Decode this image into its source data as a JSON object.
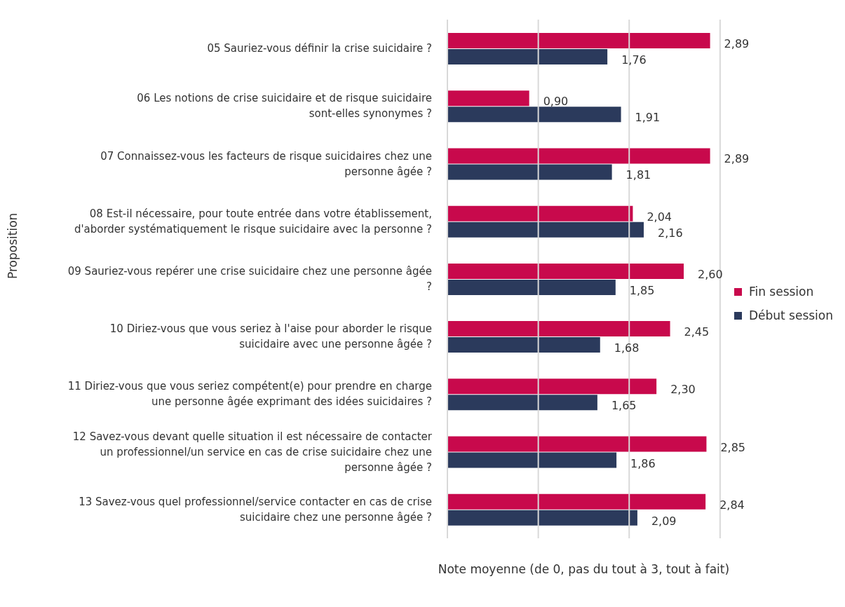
{
  "chart_data": {
    "type": "bar",
    "orientation": "horizontal",
    "xlabel": "Note moyenne (de 0, pas du tout à 3, tout à fait)",
    "ylabel": "Proposition",
    "categories": [
      "05 Sauriez-vous définir la crise suicidaire ?",
      "06 Les notions de crise suicidaire et de risque suicidaire sont-elles synonymes ?",
      "07 Connaissez-vous les facteurs de risque suicidaires chez une personne âgée ?",
      "08 Est-il nécessaire, pour toute entrée dans votre établissement, d'aborder systématiquement le risque suicidaire avec la personne ?",
      "09 Sauriez-vous repérer une crise suicidaire chez une personne âgée ?",
      "10 Diriez-vous que vous seriez à l'aise pour aborder le risque suicidaire avec une personne âgée ?",
      "11 Diriez-vous que vous seriez compétent(e) pour prendre en charge une personne âgée exprimant des idées suicidaires ?",
      "12 Savez-vous devant quelle situation il est nécessaire de contacter un professionnel/un service en cas de crise suicidaire chez une personne âgée ?",
      "13 Savez-vous quel professionnel/service contacter en cas de crise suicidaire chez une personne âgée ?"
    ],
    "series": [
      {
        "name": "Fin session",
        "color": "#c8094c",
        "values": [
          2.89,
          0.9,
          2.89,
          2.04,
          2.6,
          2.45,
          2.3,
          2.85,
          2.84
        ],
        "value_labels": [
          "2,89",
          "0,90",
          "2,89",
          "2,04",
          "2,60",
          "2,45",
          "2,30",
          "2,85",
          "2,84"
        ]
      },
      {
        "name": "Début session",
        "color": "#2b3a5c",
        "values": [
          1.76,
          1.91,
          1.81,
          2.16,
          1.85,
          1.68,
          1.65,
          1.86,
          2.09
        ],
        "value_labels": [
          "1,76",
          "1,91",
          "1,81",
          "2,16",
          "1,85",
          "1,68",
          "1,65",
          "1,86",
          "2,09"
        ]
      }
    ],
    "xlim": [
      0,
      3
    ],
    "xticks": [
      {
        "value": 0,
        "label": null
      },
      {
        "value": 1,
        "label": null
      },
      {
        "value": 2,
        "label": null
      },
      {
        "value": 3,
        "label": null
      }
    ],
    "tick_labels": "y",
    "grid": "x",
    "legend": "right"
  }
}
